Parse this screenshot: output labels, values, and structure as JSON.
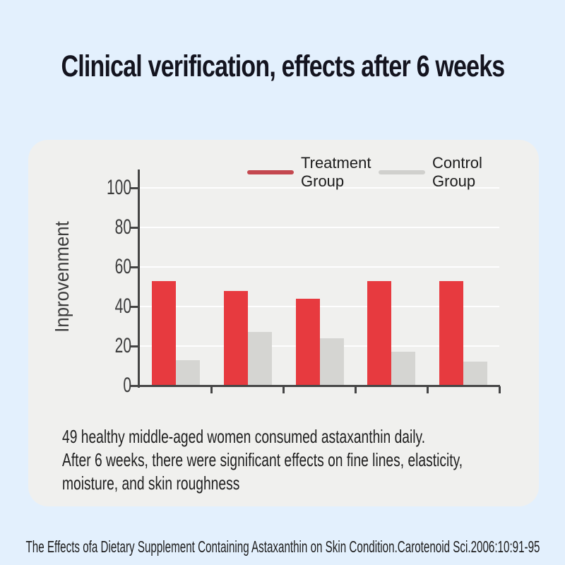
{
  "title": "Clinical verification, effects after 6 weeks",
  "chart_data": {
    "type": "bar",
    "categories": [
      "",
      "",
      "",
      "",
      ""
    ],
    "series": [
      {
        "name": "Treatment Group",
        "color": "#e73a3f",
        "legend_color": "#c4484f",
        "values": [
          53,
          48,
          44,
          53,
          53
        ]
      },
      {
        "name": "Control Group",
        "color": "#d5d5d2",
        "legend_color": "#d0d0cd",
        "values": [
          13,
          27,
          24,
          17,
          12
        ]
      }
    ],
    "title": "",
    "xlabel": "",
    "ylabel": "Inprovenment",
    "yticks": [
      0,
      20,
      40,
      60,
      80,
      100
    ],
    "ylim": [
      0,
      110
    ],
    "grid": "horizontal-white-on-gray",
    "legend_position": "top",
    "plot_background": "#f0f0ee",
    "x_axis_category_labels_visible": false
  },
  "description": {
    "lines": [
      "49 healthy middle-aged women consumed astaxanthin daily.",
      "After 6 weeks, there were significant effects on fine lines, elasticity,",
      "moisture, and skin roughness"
    ]
  },
  "footer": "The Effects ofa Dietary Supplement Containing Astaxanthin on Skin Condition.Carotenoid Sci.2006:10:91-95",
  "colors": {
    "page_background": "#e3f0fd",
    "card_background": "#f0f0ee",
    "title_text": "#14141f",
    "axis": "#454545",
    "tick_text": "#3c3c3c",
    "body_text": "#1f1f1f",
    "gridline": "rgba(255,255,255,0.9)"
  }
}
